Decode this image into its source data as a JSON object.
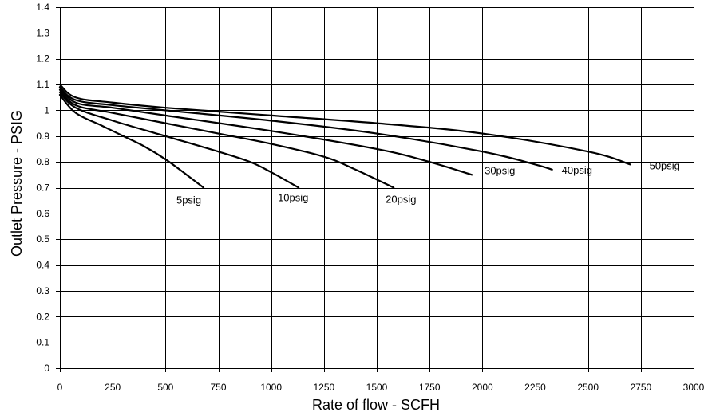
{
  "chart_data": {
    "type": "line",
    "xlabel": "Rate of flow - SCFH",
    "ylabel": "Outlet Pressure - PSIG",
    "xlim": [
      0,
      3000
    ],
    "ylim": [
      0,
      1.4
    ],
    "x_ticks": [
      "0",
      "250",
      "500",
      "750",
      "1000",
      "1250",
      "1500",
      "1750",
      "2000",
      "2250",
      "2500",
      "2750",
      "3000"
    ],
    "y_ticks": [
      "0",
      "0.1",
      "0.2",
      "0.3",
      "0.4",
      "0.5",
      "0.6",
      "0.7",
      "0.8",
      "0.9",
      "1",
      "1.1",
      "1.2",
      "1.3",
      "1.4"
    ],
    "grid": true,
    "series": [
      {
        "name": "5psig",
        "x": [
          0,
          75,
          200,
          300,
          400,
          500,
          600,
          680
        ],
        "y": [
          1.06,
          0.99,
          0.94,
          0.9,
          0.86,
          0.81,
          0.75,
          0.7
        ]
      },
      {
        "name": "10psig",
        "x": [
          0,
          75,
          250,
          500,
          750,
          900,
          1000,
          1130
        ],
        "y": [
          1.07,
          1.01,
          0.96,
          0.9,
          0.84,
          0.8,
          0.76,
          0.7
        ]
      },
      {
        "name": "20psig",
        "x": [
          0,
          75,
          250,
          500,
          750,
          1000,
          1250,
          1400,
          1580
        ],
        "y": [
          1.08,
          1.02,
          0.99,
          0.95,
          0.91,
          0.87,
          0.82,
          0.77,
          0.7
        ]
      },
      {
        "name": "30psig",
        "x": [
          0,
          75,
          250,
          500,
          1000,
          1500,
          1750,
          1950
        ],
        "y": [
          1.09,
          1.03,
          1.01,
          0.98,
          0.92,
          0.85,
          0.8,
          0.75
        ]
      },
      {
        "name": "40psig",
        "x": [
          0,
          75,
          250,
          500,
          1000,
          1500,
          2000,
          2250,
          2330
        ],
        "y": [
          1.09,
          1.04,
          1.02,
          1.0,
          0.96,
          0.91,
          0.84,
          0.79,
          0.77
        ]
      },
      {
        "name": "50psig",
        "x": [
          0,
          75,
          250,
          500,
          1000,
          1500,
          2000,
          2500,
          2700
        ],
        "y": [
          1.1,
          1.05,
          1.03,
          1.01,
          0.98,
          0.95,
          0.91,
          0.84,
          0.79
        ]
      }
    ]
  }
}
